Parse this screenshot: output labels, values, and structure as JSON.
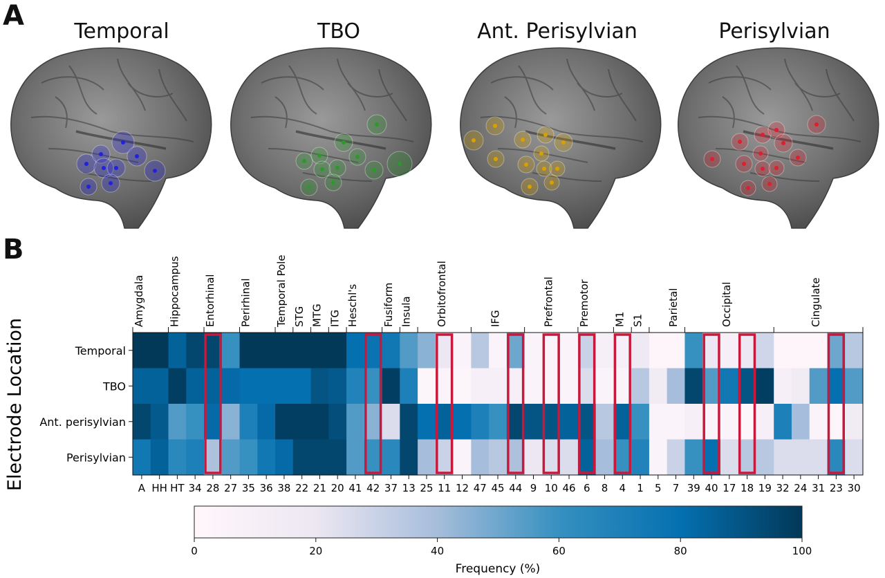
{
  "panel_labels": {
    "a": "A",
    "b": "B"
  },
  "brains": [
    {
      "title": "Temporal",
      "color": "#2222dd"
    },
    {
      "title": "TBO",
      "color": "#2a9a2a"
    },
    {
      "title": "Ant. Perisylvian",
      "color": "#d8a000"
    },
    {
      "title": "Perisylvian",
      "color": "#dd1f2f"
    }
  ],
  "chart_data": {
    "type": "heatmap",
    "ylabel": "Electrode Location",
    "rows": [
      "Temporal",
      "TBO",
      "Ant. perisylvian",
      "Perisylvian"
    ],
    "columns": [
      "A",
      "HH",
      "HT",
      "34",
      "28",
      "27",
      "35",
      "36",
      "38",
      "22",
      "21",
      "20",
      "41",
      "42",
      "37",
      "13",
      "25",
      "11",
      "12",
      "47",
      "45",
      "44",
      "9",
      "10",
      "46",
      "6",
      "8",
      "4",
      "1",
      "5",
      "7",
      "39",
      "40",
      "17",
      "18",
      "19",
      "32",
      "24",
      "31",
      "23",
      "30"
    ],
    "region_labels": [
      "Amygdala",
      "Hippocampus",
      "Entorhinal",
      "Perirhinal",
      "Temporal Pole",
      "STG",
      "MTG",
      "ITG",
      "Heschl's",
      "Fusiform",
      "Insula",
      "Orbitofrontal",
      "IFG",
      "Prefrontal",
      "Premotor",
      "M1",
      "S1",
      "Parietal",
      "Occipital",
      "Cingulate"
    ],
    "highlighted_columns": [
      "28",
      "42",
      "11",
      "44",
      "10",
      "6",
      "4",
      "40",
      "18",
      "23"
    ],
    "highlight_color": "#c8193c",
    "values": [
      [
        100,
        100,
        85,
        95,
        95,
        60,
        100,
        100,
        100,
        100,
        100,
        100,
        80,
        78,
        75,
        55,
        45,
        20,
        5,
        35,
        5,
        50,
        5,
        5,
        5,
        30,
        10,
        10,
        18,
        2,
        2,
        60,
        20,
        10,
        20,
        28,
        2,
        2,
        2,
        50,
        35
      ],
      [
        85,
        85,
        98,
        85,
        85,
        82,
        80,
        80,
        80,
        80,
        90,
        88,
        68,
        60,
        98,
        70,
        3,
        5,
        3,
        10,
        10,
        10,
        5,
        5,
        5,
        25,
        5,
        5,
        35,
        15,
        40,
        95,
        55,
        75,
        90,
        98,
        10,
        15,
        55,
        80,
        55
      ],
      [
        95,
        88,
        55,
        60,
        82,
        45,
        70,
        82,
        98,
        98,
        98,
        92,
        55,
        45,
        25,
        95,
        80,
        85,
        80,
        70,
        60,
        95,
        90,
        90,
        85,
        90,
        35,
        85,
        60,
        5,
        5,
        10,
        5,
        5,
        3,
        10,
        70,
        40,
        5,
        3,
        15
      ],
      [
        75,
        85,
        65,
        70,
        38,
        55,
        60,
        75,
        82,
        95,
        95,
        95,
        55,
        60,
        65,
        95,
        40,
        30,
        5,
        40,
        35,
        38,
        20,
        25,
        25,
        85,
        40,
        60,
        68,
        5,
        30,
        60,
        80,
        25,
        35,
        35,
        25,
        25,
        25,
        65,
        25
      ]
    ],
    "colorbar": {
      "label": "Frequency (%)",
      "range": [
        0,
        100
      ],
      "ticks": [
        "0",
        "20",
        "40",
        "60",
        "80",
        "100"
      ]
    }
  }
}
